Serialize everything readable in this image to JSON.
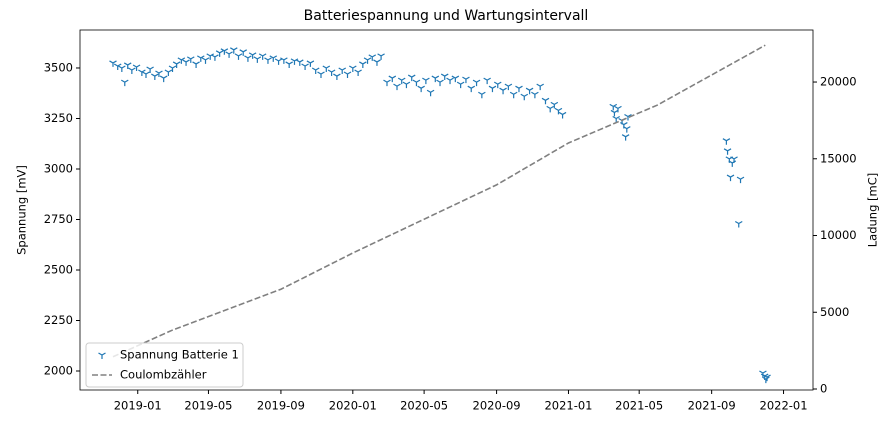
{
  "chart_data": {
    "type": "scatter",
    "title": "Batteriespannung und Wartungsintervall",
    "ylabel": "Spannung [mV]",
    "y2label": "Ladung [mC]",
    "xlim": [
      "2018-09-25",
      "2022-02-20"
    ],
    "xticks": [
      "2019-01",
      "2019-05",
      "2019-09",
      "2020-01",
      "2020-05",
      "2020-09",
      "2021-01",
      "2021-05",
      "2021-09",
      "2022-01"
    ],
    "ylim": [
      1906,
      3688
    ],
    "yticks": [
      2000,
      2250,
      2500,
      2750,
      3000,
      3250,
      3500
    ],
    "y2lim": [
      -65,
      23390
    ],
    "y2ticks": [
      0,
      5000,
      10000,
      15000,
      20000
    ],
    "legend": "lower left",
    "grid": false,
    "series": [
      {
        "name": "Spannung Batterie 1",
        "type": "scatter",
        "color": "#1f77b4",
        "x": [
          "2018-11-20",
          "2018-11-28",
          "2018-12-05",
          "2018-12-10",
          "2018-12-15",
          "2018-12-22",
          "2018-12-30",
          "2019-01-08",
          "2019-01-15",
          "2019-01-22",
          "2019-01-30",
          "2019-02-06",
          "2019-02-14",
          "2019-02-22",
          "2019-03-01",
          "2019-03-08",
          "2019-03-16",
          "2019-03-24",
          "2019-04-01",
          "2019-04-10",
          "2019-04-18",
          "2019-04-26",
          "2019-05-04",
          "2019-05-12",
          "2019-05-20",
          "2019-05-28",
          "2019-06-05",
          "2019-06-13",
          "2019-06-21",
          "2019-06-29",
          "2019-07-07",
          "2019-07-15",
          "2019-07-23",
          "2019-08-01",
          "2019-08-10",
          "2019-08-19",
          "2019-08-28",
          "2019-09-06",
          "2019-09-15",
          "2019-09-24",
          "2019-10-03",
          "2019-10-12",
          "2019-10-21",
          "2019-10-30",
          "2019-11-08",
          "2019-11-17",
          "2019-11-26",
          "2019-12-05",
          "2019-12-14",
          "2019-12-23",
          "2020-01-01",
          "2020-01-10",
          "2020-01-18",
          "2020-01-26",
          "2020-02-03",
          "2020-02-11",
          "2020-02-18",
          "2020-02-28",
          "2020-03-08",
          "2020-03-16",
          "2020-03-24",
          "2020-04-01",
          "2020-04-10",
          "2020-04-18",
          "2020-04-26",
          "2020-05-04",
          "2020-05-12",
          "2020-05-20",
          "2020-05-28",
          "2020-06-05",
          "2020-06-14",
          "2020-06-23",
          "2020-07-02",
          "2020-07-11",
          "2020-07-20",
          "2020-07-29",
          "2020-08-07",
          "2020-08-16",
          "2020-08-25",
          "2020-09-03",
          "2020-09-12",
          "2020-09-21",
          "2020-09-30",
          "2020-10-09",
          "2020-10-18",
          "2020-10-27",
          "2020-11-05",
          "2020-11-14",
          "2020-11-23",
          "2020-12-01",
          "2020-12-08",
          "2020-12-15",
          "2020-12-22",
          "2021-03-18",
          "2021-03-20",
          "2021-03-23",
          "2021-03-26",
          "2021-04-02",
          "2021-04-05",
          "2021-04-08",
          "2021-04-10",
          "2021-04-12",
          "2021-09-26",
          "2021-09-28",
          "2021-10-01",
          "2021-10-03",
          "2021-10-06",
          "2021-10-09",
          "2021-10-17",
          "2021-10-20",
          "2021-11-27",
          "2021-11-30",
          "2021-12-02",
          "2021-12-04"
        ],
        "values": [
          3525,
          3510,
          3500,
          3430,
          3515,
          3490,
          3505,
          3480,
          3470,
          3495,
          3460,
          3475,
          3450,
          3480,
          3500,
          3520,
          3540,
          3530,
          3545,
          3520,
          3550,
          3540,
          3560,
          3555,
          3575,
          3585,
          3570,
          3590,
          3560,
          3580,
          3550,
          3565,
          3545,
          3560,
          3540,
          3550,
          3535,
          3540,
          3520,
          3535,
          3530,
          3510,
          3525,
          3490,
          3470,
          3500,
          3480,
          3460,
          3490,
          3470,
          3500,
          3480,
          3520,
          3540,
          3555,
          3530,
          3560,
          3430,
          3450,
          3410,
          3440,
          3420,
          3455,
          3430,
          3400,
          3440,
          3380,
          3450,
          3430,
          3460,
          3440,
          3450,
          3420,
          3445,
          3400,
          3430,
          3370,
          3440,
          3400,
          3420,
          3390,
          3410,
          3370,
          3400,
          3360,
          3390,
          3370,
          3410,
          3340,
          3300,
          3320,
          3290,
          3270,
          3310,
          3280,
          3250,
          3300,
          3240,
          3220,
          3160,
          3200,
          3260,
          3140,
          3090,
          3050,
          2960,
          3030,
          3050,
          2730,
          2950,
          1990,
          1975,
          1960,
          1970
        ]
      },
      {
        "name": "Coulombzähler",
        "type": "line",
        "axis": "y2",
        "color": "#808080",
        "dashed": true,
        "x": [
          "2018-11-20",
          "2019-03-01",
          "2019-09-01",
          "2020-01-01",
          "2020-09-01",
          "2021-01-01",
          "2021-06-01",
          "2021-12-01"
        ],
        "values": [
          2100,
          3840,
          6500,
          8860,
          13300,
          16030,
          18500,
          22400
        ]
      }
    ]
  }
}
